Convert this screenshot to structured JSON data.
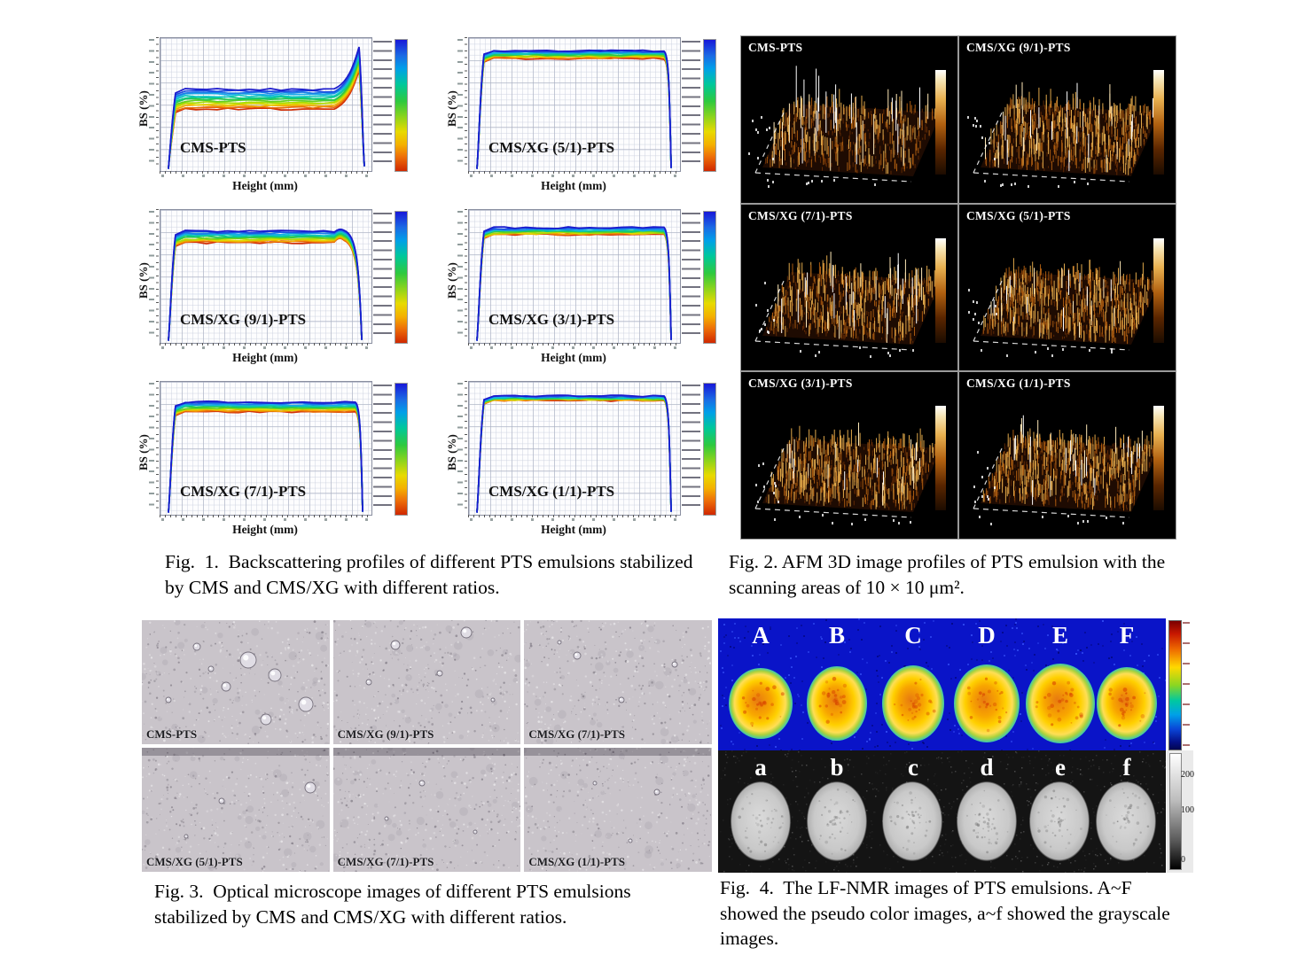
{
  "fig1": {
    "ylabel": "BS (%)",
    "xlabel": "Height (mm)",
    "panels": [
      {
        "label": "CMS-PTS"
      },
      {
        "label": "CMS/XG (5/1)-PTS"
      },
      {
        "label": "CMS/XG (9/1)-PTS"
      },
      {
        "label": "CMS/XG (3/1)-PTS"
      },
      {
        "label": "CMS/XG (7/1)-PTS"
      },
      {
        "label": "CMS/XG (1/1)-PTS"
      }
    ],
    "caption": "Fig.  1.  Backscattering profiles of different PTS emulsions stabilized by CMS and CMS/XG with different ratios."
  },
  "fig2": {
    "panels": [
      "CMS-PTS",
      "CMS/XG (9/1)-PTS",
      "CMS/XG (7/1)-PTS",
      "CMS/XG (5/1)-PTS",
      "CMS/XG (3/1)-PTS",
      "CMS/XG (1/1)-PTS"
    ],
    "caption": "Fig. 2. AFM 3D image profiles of PTS emulsion with the scanning areas of 10 × 10 μm²."
  },
  "fig3": {
    "panels": [
      "CMS-PTS",
      "CMS/XG (9/1)-PTS",
      "CMS/XG (7/1)-PTS",
      "CMS/XG (5/1)-PTS",
      "CMS/XG (7/1)-PTS",
      "CMS/XG (1/1)-PTS"
    ],
    "caption": "Fig. 3.  Optical microscope images of different PTS emulsions stabilized by CMS and CMS/XG with different ratios."
  },
  "fig4": {
    "pseudo_labels": [
      "A",
      "B",
      "C",
      "D",
      "E",
      "F"
    ],
    "gray_labels": [
      "a",
      "b",
      "c",
      "d",
      "e",
      "f"
    ],
    "gray_colorbar_ticks": [
      "200",
      "100",
      "0"
    ],
    "caption": "Fig.  4.  The LF-NMR images of PTS emulsions. A~F showed the pseudo color images, a~f showed the grayscale images."
  },
  "colors": {
    "pseudo_background": "#0a14c8",
    "pseudo_droplet_core": "#f08014",
    "afm_surface_gold": "#b06414",
    "grayscale_droplet": "#cfcfcf",
    "legend_rainbow_top": "#1818d8",
    "legend_rainbow_bottom": "#d02800"
  },
  "chart_data": [
    {
      "type": "line",
      "title": "CMS-PTS",
      "xlabel": "Height (mm)",
      "ylabel": "BS (%)",
      "x_range_mm": [
        0,
        45
      ],
      "series_note": "multi-timepoint backscattering band, blue = early scan to red = late scan",
      "plateau_bs_pct": [
        14,
        18
      ],
      "features": "steep rise 0-2 mm; wide band (destabilization); sharp BS spike to ~30% near 42 mm (creaming layer), then drop"
    },
    {
      "type": "line",
      "title": "CMS/XG (5/1)-PTS",
      "xlabel": "Height (mm)",
      "ylabel": "BS (%)",
      "x_range_mm": [
        0,
        45
      ],
      "series_note": "multi-timepoint backscattering band",
      "plateau_bs_pct": [
        20,
        22
      ],
      "features": "flat narrow band across full height, rounded shoulders, no spike (stable)"
    },
    {
      "type": "line",
      "title": "CMS/XG (9/1)-PTS",
      "xlabel": "Height (mm)",
      "ylabel": "BS (%)",
      "x_range_mm": [
        0,
        45
      ],
      "series_note": "multi-timepoint backscattering band",
      "plateau_bs_pct": [
        17,
        20
      ],
      "features": "flat medium band, slight bump near 42 mm before drop"
    },
    {
      "type": "line",
      "title": "CMS/XG (3/1)-PTS",
      "xlabel": "Height (mm)",
      "ylabel": "BS (%)",
      "x_range_mm": [
        0,
        45
      ],
      "series_note": "multi-timepoint backscattering band",
      "plateau_bs_pct": [
        19,
        21
      ],
      "features": "flat narrow band, no spike (stable)"
    },
    {
      "type": "line",
      "title": "CMS/XG (7/1)-PTS",
      "xlabel": "Height (mm)",
      "ylabel": "BS (%)",
      "x_range_mm": [
        0,
        45
      ],
      "series_note": "multi-timepoint backscattering band",
      "plateau_bs_pct": [
        18,
        20
      ],
      "features": "flat narrow band, no spike (stable)"
    },
    {
      "type": "line",
      "title": "CMS/XG (1/1)-PTS",
      "xlabel": "Height (mm)",
      "ylabel": "BS (%)",
      "x_range_mm": [
        0,
        45
      ],
      "series_note": "multi-timepoint backscattering band",
      "plateau_bs_pct": [
        20,
        21
      ],
      "features": "very narrow overlapping band (most stable), no spike"
    }
  ]
}
